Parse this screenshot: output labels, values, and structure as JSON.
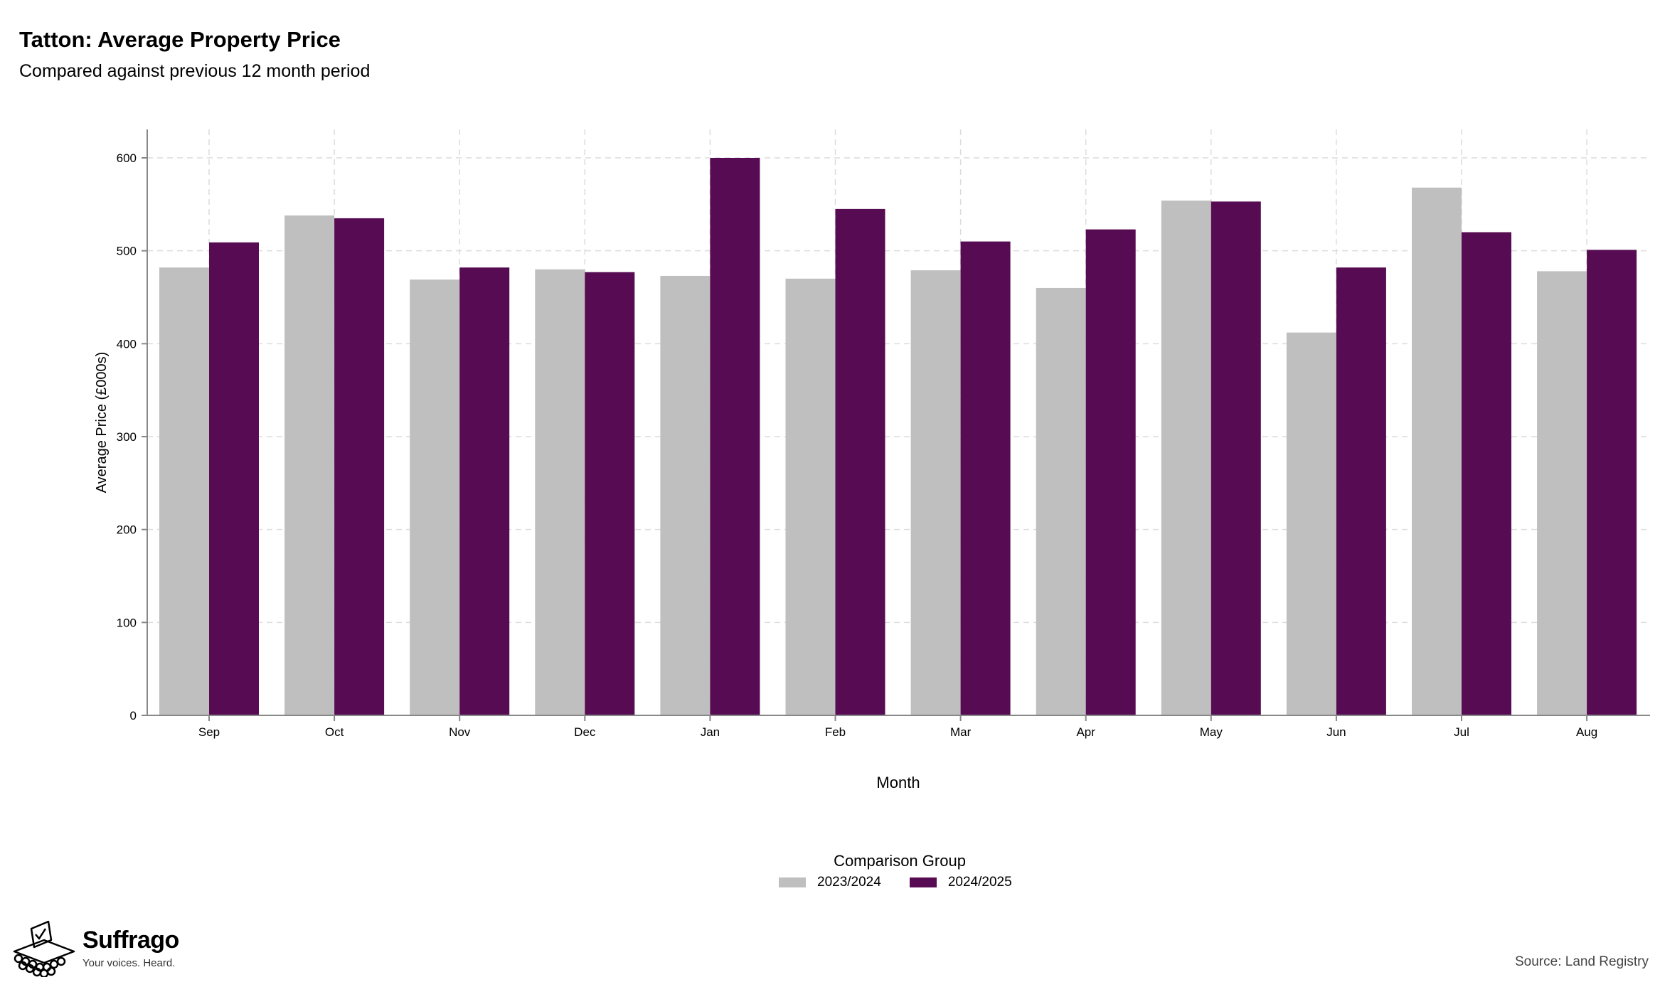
{
  "title": "Tatton: Average Property Price",
  "subtitle": "Compared against previous 12 month period",
  "chart_data": {
    "type": "bar",
    "categories": [
      "Sep",
      "Oct",
      "Nov",
      "Dec",
      "Jan",
      "Feb",
      "Mar",
      "Apr",
      "May",
      "Jun",
      "Jul",
      "Aug"
    ],
    "series": [
      {
        "name": "2023/2024",
        "color": "#bfbfbf",
        "values": [
          482,
          538,
          469,
          480,
          473,
          470,
          479,
          460,
          554,
          412,
          568,
          478
        ]
      },
      {
        "name": "2024/2025",
        "color": "#560b52",
        "values": [
          509,
          535,
          482,
          477,
          600,
          545,
          510,
          523,
          553,
          482,
          520,
          501
        ]
      }
    ],
    "xlabel": "Month",
    "ylabel": "Average Price (£000s)",
    "ylim": [
      0,
      600
    ],
    "yticks": [
      0,
      100,
      200,
      300,
      400,
      500,
      600
    ],
    "grid": true,
    "legend_title": "Comparison Group",
    "legend_position": "bottom"
  },
  "branding": {
    "name": "Suffrago",
    "tagline": "Your voices. Heard.",
    "icon": "ballot-box-icon"
  },
  "source": "Source: Land Registry"
}
